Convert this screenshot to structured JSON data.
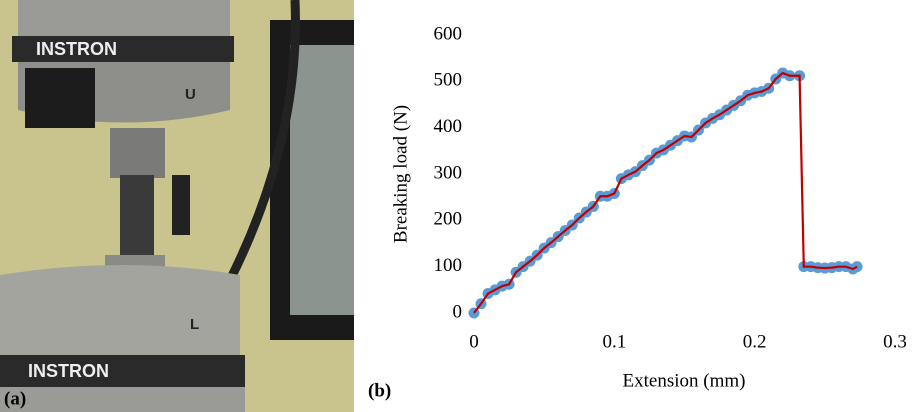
{
  "photo": {
    "labels": [
      "INSTRON",
      "U",
      "L",
      "INSTRON"
    ]
  },
  "panel_labels": [
    "(a)",
    "(b)"
  ],
  "chart_data": {
    "type": "scatter-line",
    "xlabel": "Extension (mm)",
    "ylabel": "Breaking load (N)",
    "x": [
      0,
      0.005,
      0.01,
      0.015,
      0.02,
      0.025,
      0.03,
      0.035,
      0.04,
      0.045,
      0.05,
      0.055,
      0.06,
      0.065,
      0.07,
      0.075,
      0.08,
      0.085,
      0.09,
      0.095,
      0.1,
      0.105,
      0.11,
      0.115,
      0.12,
      0.125,
      0.13,
      0.135,
      0.14,
      0.145,
      0.15,
      0.155,
      0.16,
      0.165,
      0.17,
      0.175,
      0.18,
      0.185,
      0.19,
      0.195,
      0.2,
      0.205,
      0.21,
      0.215,
      0.22,
      0.225,
      0.232,
      0.235,
      0.24,
      0.245,
      0.25,
      0.255,
      0.26,
      0.265,
      0.27,
      0.273
    ],
    "series": [
      {
        "color": "#5b9bd5",
        "line_color": "#c00000",
        "values": [
          0,
          20,
          42,
          50,
          58,
          62,
          88,
          100,
          112,
          125,
          140,
          152,
          165,
          178,
          190,
          205,
          218,
          230,
          252,
          252,
          258,
          290,
          298,
          305,
          318,
          330,
          345,
          352,
          362,
          372,
          382,
          380,
          395,
          410,
          420,
          428,
          438,
          448,
          458,
          470,
          475,
          478,
          485,
          505,
          518,
          512,
          512,
          100,
          100,
          98,
          97,
          98,
          100,
          100,
          95,
          100
        ]
      }
    ],
    "xlim": [
      0,
      0.3
    ],
    "xticks": [
      0,
      0.1,
      0.2,
      0.3
    ],
    "ylim": [
      0,
      600
    ],
    "yticks": [
      0,
      100,
      200,
      300,
      400,
      500,
      600
    ]
  }
}
